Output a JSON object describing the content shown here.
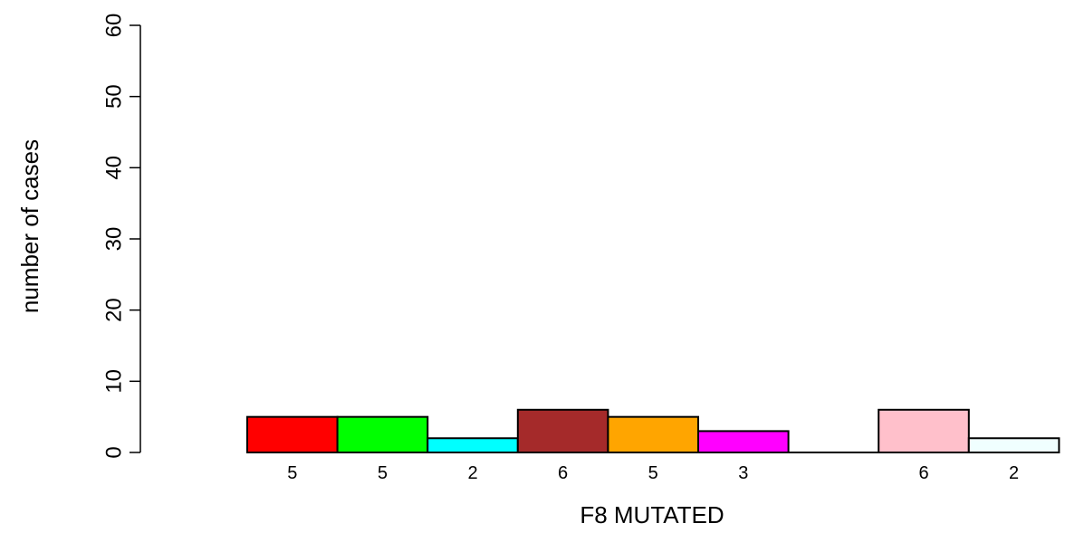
{
  "chart_data": {
    "type": "bar",
    "title": "",
    "xlabel": "F8 MUTATED",
    "ylabel": "number of cases",
    "ylim": [
      0,
      60
    ],
    "yticks": [
      0,
      10,
      20,
      30,
      40,
      50,
      60
    ],
    "grid": false,
    "legend": "none",
    "bars": [
      {
        "value": 5,
        "label": "5",
        "color": "#ff0000"
      },
      {
        "value": 5,
        "label": "5",
        "color": "#00ff00"
      },
      {
        "value": 2,
        "label": "2",
        "color": "#00ffff"
      },
      {
        "value": 6,
        "label": "6",
        "color": "#a52a2a"
      },
      {
        "value": 5,
        "label": "5",
        "color": "#ffa500"
      },
      {
        "value": 3,
        "label": "3",
        "color": "#ff00ff"
      },
      {
        "value": 0,
        "label": "",
        "color": "#0000ff"
      },
      {
        "value": 6,
        "label": "6",
        "color": "#ffc0cb"
      },
      {
        "value": 2,
        "label": "2",
        "color": "#f0ffff"
      }
    ]
  }
}
